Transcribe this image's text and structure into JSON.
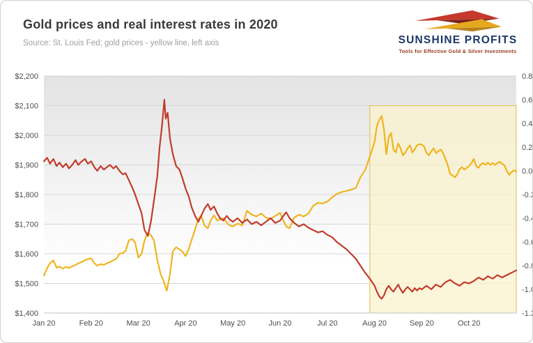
{
  "header": {
    "title": "Gold prices and real interest rates in 2020",
    "subtitle": "Source: St. Louis Fed; gold prices - yellow line, left axis"
  },
  "logo": {
    "brand": "SUNSHINE PROFITS",
    "tagline": "Tools for Effective Gold & Silver Investments",
    "colors": {
      "brand_text": "#1c3765",
      "tagline_text": "#9c3b28",
      "red": "#c5392b",
      "dark_red": "#7e221a",
      "gold": "#e6a81e",
      "dark_gold": "#b5821b"
    }
  },
  "chart_data": {
    "type": "line",
    "title": "Gold prices and real interest rates in 2020",
    "source_note": "Source: St. Louis Fed; gold prices - yellow line, left axis",
    "legend": "none",
    "grid": "horizontal",
    "x_axis": {
      "range": [
        0,
        10
      ],
      "tick_values": [
        0,
        1,
        2,
        3,
        4,
        5,
        6,
        7,
        8,
        9
      ],
      "tick_labels": [
        "Jan 20",
        "Feb 20",
        "Mar 20",
        "Apr 20",
        "May 20",
        "Jun 20",
        "Jul 20",
        "Aug 20",
        "Sep 20",
        "Oct 20"
      ]
    },
    "left_axis": {
      "range": [
        1400,
        2200
      ],
      "tick_values": [
        2200,
        2100,
        2000,
        1900,
        1800,
        1700,
        1600,
        1500,
        1400
      ],
      "tick_labels": [
        "$2,200",
        "$2,100",
        "$2,000",
        "$1,900",
        "$1,800",
        "$1,700",
        "$1,600",
        "$1,500",
        "$1,400"
      ]
    },
    "right_axis": {
      "range": [
        -1.2,
        0.8
      ],
      "tick_values": [
        0.8,
        0.6,
        0.4,
        0.2,
        0.0,
        -0.2,
        -0.4,
        -0.6,
        -0.8,
        -1.0,
        -1.2
      ],
      "tick_labels": [
        "0.8",
        "0.6",
        "0.4",
        "0.2",
        "0.0",
        "-0.2",
        "-0.4",
        "-0.6",
        "-0.8",
        "-1.0",
        "-1.2"
      ]
    },
    "highlight_region": {
      "x_range": [
        6.9,
        10
      ],
      "y_range_right_axis": [
        -1.2,
        0.55
      ],
      "fill": "#faf1cd",
      "opacity": 0.75,
      "border": "#ddbe55"
    },
    "series": [
      {
        "name": "Gold price (yellow line, left axis)",
        "axis": "left",
        "color": "#f0b41e",
        "points": [
          [
            0.0,
            1527
          ],
          [
            0.07,
            1552
          ],
          [
            0.13,
            1568
          ],
          [
            0.2,
            1578
          ],
          [
            0.27,
            1553
          ],
          [
            0.33,
            1557
          ],
          [
            0.4,
            1550
          ],
          [
            0.47,
            1556
          ],
          [
            0.53,
            1552
          ],
          [
            0.6,
            1558
          ],
          [
            0.67,
            1562
          ],
          [
            0.73,
            1568
          ],
          [
            0.8,
            1572
          ],
          [
            0.87,
            1578
          ],
          [
            0.93,
            1582
          ],
          [
            1.0,
            1585
          ],
          [
            1.07,
            1568
          ],
          [
            1.13,
            1560
          ],
          [
            1.2,
            1565
          ],
          [
            1.27,
            1562
          ],
          [
            1.33,
            1568
          ],
          [
            1.4,
            1572
          ],
          [
            1.47,
            1578
          ],
          [
            1.53,
            1583
          ],
          [
            1.6,
            1600
          ],
          [
            1.67,
            1602
          ],
          [
            1.73,
            1610
          ],
          [
            1.8,
            1645
          ],
          [
            1.87,
            1650
          ],
          [
            1.93,
            1638
          ],
          [
            2.0,
            1587
          ],
          [
            2.07,
            1600
          ],
          [
            2.13,
            1645
          ],
          [
            2.2,
            1672
          ],
          [
            2.27,
            1662
          ],
          [
            2.33,
            1645
          ],
          [
            2.4,
            1580
          ],
          [
            2.47,
            1532
          ],
          [
            2.53,
            1510
          ],
          [
            2.6,
            1475
          ],
          [
            2.67,
            1532
          ],
          [
            2.73,
            1608
          ],
          [
            2.8,
            1622
          ],
          [
            2.87,
            1615
          ],
          [
            2.93,
            1608
          ],
          [
            3.0,
            1592
          ],
          [
            3.07,
            1618
          ],
          [
            3.13,
            1648
          ],
          [
            3.2,
            1682
          ],
          [
            3.27,
            1718
          ],
          [
            3.33,
            1730
          ],
          [
            3.4,
            1695
          ],
          [
            3.47,
            1686
          ],
          [
            3.53,
            1712
          ],
          [
            3.6,
            1730
          ],
          [
            3.67,
            1712
          ],
          [
            3.73,
            1716
          ],
          [
            3.8,
            1720
          ],
          [
            3.87,
            1706
          ],
          [
            3.93,
            1696
          ],
          [
            4.0,
            1692
          ],
          [
            4.1,
            1702
          ],
          [
            4.2,
            1696
          ],
          [
            4.3,
            1745
          ],
          [
            4.4,
            1732
          ],
          [
            4.5,
            1726
          ],
          [
            4.6,
            1736
          ],
          [
            4.7,
            1722
          ],
          [
            4.8,
            1718
          ],
          [
            4.9,
            1728
          ],
          [
            5.0,
            1738
          ],
          [
            5.07,
            1712
          ],
          [
            5.13,
            1692
          ],
          [
            5.2,
            1686
          ],
          [
            5.3,
            1722
          ],
          [
            5.4,
            1732
          ],
          [
            5.5,
            1726
          ],
          [
            5.6,
            1736
          ],
          [
            5.7,
            1762
          ],
          [
            5.8,
            1772
          ],
          [
            5.9,
            1770
          ],
          [
            6.0,
            1776
          ],
          [
            6.1,
            1790
          ],
          [
            6.2,
            1802
          ],
          [
            6.3,
            1808
          ],
          [
            6.4,
            1812
          ],
          [
            6.5,
            1816
          ],
          [
            6.6,
            1822
          ],
          [
            6.7,
            1858
          ],
          [
            6.8,
            1882
          ],
          [
            6.9,
            1928
          ],
          [
            7.0,
            1978
          ],
          [
            7.05,
            2032
          ],
          [
            7.1,
            2052
          ],
          [
            7.15,
            2065
          ],
          [
            7.2,
            2018
          ],
          [
            7.25,
            1936
          ],
          [
            7.3,
            1992
          ],
          [
            7.35,
            2008
          ],
          [
            7.4,
            1952
          ],
          [
            7.45,
            1942
          ],
          [
            7.5,
            1972
          ],
          [
            7.55,
            1956
          ],
          [
            7.6,
            1932
          ],
          [
            7.65,
            1942
          ],
          [
            7.7,
            1956
          ],
          [
            7.75,
            1966
          ],
          [
            7.8,
            1942
          ],
          [
            7.85,
            1952
          ],
          [
            7.9,
            1966
          ],
          [
            7.95,
            1970
          ],
          [
            8.0,
            1968
          ],
          [
            8.05,
            1962
          ],
          [
            8.1,
            1940
          ],
          [
            8.15,
            1932
          ],
          [
            8.2,
            1946
          ],
          [
            8.25,
            1956
          ],
          [
            8.3,
            1940
          ],
          [
            8.35,
            1946
          ],
          [
            8.4,
            1952
          ],
          [
            8.45,
            1940
          ],
          [
            8.5,
            1920
          ],
          [
            8.55,
            1898
          ],
          [
            8.6,
            1870
          ],
          [
            8.65,
            1864
          ],
          [
            8.7,
            1858
          ],
          [
            8.75,
            1868
          ],
          [
            8.8,
            1886
          ],
          [
            8.85,
            1892
          ],
          [
            8.9,
            1884
          ],
          [
            8.95,
            1890
          ],
          [
            9.0,
            1896
          ],
          [
            9.05,
            1906
          ],
          [
            9.1,
            1920
          ],
          [
            9.15,
            1896
          ],
          [
            9.2,
            1890
          ],
          [
            9.25,
            1902
          ],
          [
            9.3,
            1906
          ],
          [
            9.35,
            1900
          ],
          [
            9.4,
            1908
          ],
          [
            9.45,
            1900
          ],
          [
            9.5,
            1906
          ],
          [
            9.55,
            1900
          ],
          [
            9.6,
            1906
          ],
          [
            9.65,
            1910
          ],
          [
            9.7,
            1904
          ],
          [
            9.75,
            1898
          ],
          [
            9.8,
            1880
          ],
          [
            9.85,
            1866
          ],
          [
            9.9,
            1876
          ],
          [
            9.95,
            1882
          ],
          [
            10.0,
            1878
          ]
        ]
      },
      {
        "name": "Real interest rate (red line, right axis)",
        "axis": "right",
        "color": "#c23b2b",
        "points": [
          [
            0.0,
            0.08
          ],
          [
            0.07,
            0.11
          ],
          [
            0.13,
            0.06
          ],
          [
            0.2,
            0.1
          ],
          [
            0.27,
            0.04
          ],
          [
            0.33,
            0.07
          ],
          [
            0.4,
            0.03
          ],
          [
            0.47,
            0.06
          ],
          [
            0.53,
            0.02
          ],
          [
            0.6,
            0.05
          ],
          [
            0.67,
            0.09
          ],
          [
            0.73,
            0.05
          ],
          [
            0.8,
            0.08
          ],
          [
            0.87,
            0.1
          ],
          [
            0.93,
            0.06
          ],
          [
            1.0,
            0.08
          ],
          [
            1.07,
            0.03
          ],
          [
            1.13,
            0.0
          ],
          [
            1.2,
            0.04
          ],
          [
            1.27,
            0.01
          ],
          [
            1.33,
            0.03
          ],
          [
            1.4,
            0.05
          ],
          [
            1.47,
            0.02
          ],
          [
            1.53,
            0.04
          ],
          [
            1.6,
            0.0
          ],
          [
            1.67,
            -0.03
          ],
          [
            1.73,
            -0.02
          ],
          [
            1.8,
            -0.08
          ],
          [
            1.87,
            -0.14
          ],
          [
            1.93,
            -0.2
          ],
          [
            2.0,
            -0.28
          ],
          [
            2.07,
            -0.36
          ],
          [
            2.13,
            -0.5
          ],
          [
            2.2,
            -0.55
          ],
          [
            2.27,
            -0.42
          ],
          [
            2.33,
            -0.25
          ],
          [
            2.4,
            -0.05
          ],
          [
            2.45,
            0.2
          ],
          [
            2.5,
            0.38
          ],
          [
            2.55,
            0.6
          ],
          [
            2.58,
            0.44
          ],
          [
            2.62,
            0.49
          ],
          [
            2.67,
            0.27
          ],
          [
            2.73,
            0.14
          ],
          [
            2.8,
            0.04
          ],
          [
            2.87,
            0.01
          ],
          [
            2.93,
            -0.06
          ],
          [
            3.0,
            -0.15
          ],
          [
            3.07,
            -0.22
          ],
          [
            3.13,
            -0.31
          ],
          [
            3.2,
            -0.38
          ],
          [
            3.27,
            -0.43
          ],
          [
            3.33,
            -0.38
          ],
          [
            3.4,
            -0.32
          ],
          [
            3.47,
            -0.28
          ],
          [
            3.53,
            -0.33
          ],
          [
            3.6,
            -0.3
          ],
          [
            3.67,
            -0.36
          ],
          [
            3.73,
            -0.4
          ],
          [
            3.8,
            -0.42
          ],
          [
            3.87,
            -0.38
          ],
          [
            3.93,
            -0.41
          ],
          [
            4.0,
            -0.43
          ],
          [
            4.1,
            -0.4
          ],
          [
            4.2,
            -0.44
          ],
          [
            4.3,
            -0.41
          ],
          [
            4.4,
            -0.45
          ],
          [
            4.5,
            -0.43
          ],
          [
            4.6,
            -0.46
          ],
          [
            4.7,
            -0.43
          ],
          [
            4.8,
            -0.4
          ],
          [
            4.9,
            -0.44
          ],
          [
            5.0,
            -0.42
          ],
          [
            5.07,
            -0.38
          ],
          [
            5.13,
            -0.35
          ],
          [
            5.2,
            -0.4
          ],
          [
            5.3,
            -0.44
          ],
          [
            5.4,
            -0.47
          ],
          [
            5.5,
            -0.45
          ],
          [
            5.6,
            -0.48
          ],
          [
            5.7,
            -0.5
          ],
          [
            5.8,
            -0.52
          ],
          [
            5.9,
            -0.51
          ],
          [
            6.0,
            -0.54
          ],
          [
            6.1,
            -0.56
          ],
          [
            6.2,
            -0.6
          ],
          [
            6.3,
            -0.63
          ],
          [
            6.4,
            -0.66
          ],
          [
            6.5,
            -0.7
          ],
          [
            6.6,
            -0.74
          ],
          [
            6.7,
            -0.8
          ],
          [
            6.8,
            -0.86
          ],
          [
            6.9,
            -0.91
          ],
          [
            7.0,
            -0.97
          ],
          [
            7.05,
            -1.02
          ],
          [
            7.1,
            -1.06
          ],
          [
            7.15,
            -1.08
          ],
          [
            7.2,
            -1.05
          ],
          [
            7.25,
            -1.0
          ],
          [
            7.3,
            -0.97
          ],
          [
            7.35,
            -1.0
          ],
          [
            7.4,
            -1.02
          ],
          [
            7.45,
            -0.99
          ],
          [
            7.5,
            -0.96
          ],
          [
            7.55,
            -1.0
          ],
          [
            7.6,
            -1.03
          ],
          [
            7.65,
            -1.0
          ],
          [
            7.7,
            -0.98
          ],
          [
            7.75,
            -1.0
          ],
          [
            7.8,
            -1.02
          ],
          [
            7.85,
            -0.99
          ],
          [
            7.9,
            -1.01
          ],
          [
            7.95,
            -0.99
          ],
          [
            8.0,
            -1.0
          ],
          [
            8.1,
            -0.97
          ],
          [
            8.2,
            -1.0
          ],
          [
            8.3,
            -0.96
          ],
          [
            8.4,
            -0.98
          ],
          [
            8.5,
            -0.94
          ],
          [
            8.6,
            -0.92
          ],
          [
            8.7,
            -0.95
          ],
          [
            8.8,
            -0.97
          ],
          [
            8.9,
            -0.94
          ],
          [
            9.0,
            -0.95
          ],
          [
            9.1,
            -0.93
          ],
          [
            9.2,
            -0.9
          ],
          [
            9.3,
            -0.92
          ],
          [
            9.4,
            -0.89
          ],
          [
            9.5,
            -0.91
          ],
          [
            9.6,
            -0.88
          ],
          [
            9.7,
            -0.9
          ],
          [
            9.8,
            -0.88
          ],
          [
            9.9,
            -0.86
          ],
          [
            10.0,
            -0.84
          ]
        ]
      }
    ]
  }
}
